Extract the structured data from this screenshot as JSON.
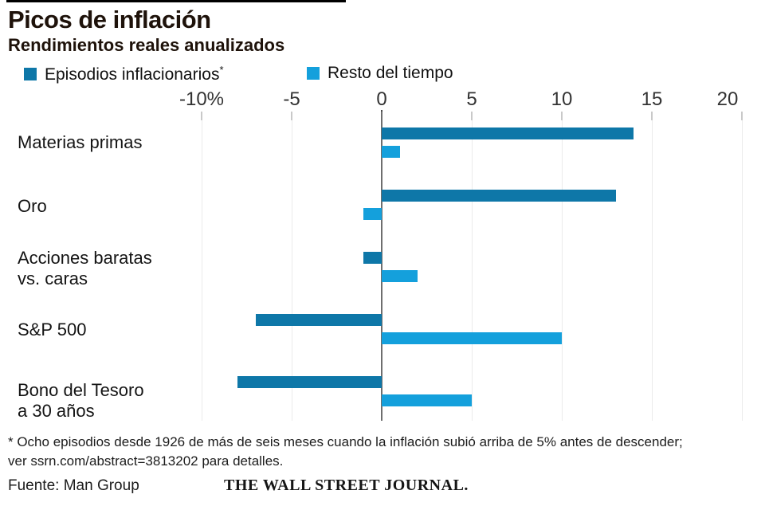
{
  "header": {
    "title": "Picos de inflación",
    "subtitle": "Rendimientos reales anualizados"
  },
  "legend": {
    "items": [
      {
        "label": "Episodios inflacionarios",
        "asterisk": "*",
        "color": "#0e77a8"
      },
      {
        "label": "Resto del tiempo",
        "asterisk": "",
        "color": "#14a0dc"
      }
    ]
  },
  "chart_data": {
    "type": "bar",
    "orientation": "horizontal",
    "title": "Picos de inflación",
    "subtitle": "Rendimientos reales anualizados",
    "categories": [
      "Materias primas",
      "Oro",
      "Acciones baratas vs. caras",
      "S&P 500",
      "Bono del Tesoro a 30 años"
    ],
    "category_lines": [
      [
        "Materias primas"
      ],
      [
        "Oro"
      ],
      [
        "Acciones baratas",
        "vs. caras"
      ],
      [
        "S&P 500"
      ],
      [
        "Bono del Tesoro",
        "a 30 años"
      ]
    ],
    "series": [
      {
        "name": "Episodios inflacionarios*",
        "color": "#0e77a8",
        "values": [
          14,
          13,
          -1,
          -7,
          -8
        ]
      },
      {
        "name": "Resto del tiempo",
        "color": "#14a0dc",
        "values": [
          1,
          -1,
          2,
          10,
          5
        ]
      }
    ],
    "x_ticks": [
      -10,
      -5,
      0,
      5,
      10,
      15,
      20
    ],
    "x_tick_labels": [
      "-10%",
      "-5",
      "0",
      "5",
      "10",
      "15",
      "20"
    ],
    "xlim": [
      -10,
      20
    ],
    "unit": "percent",
    "grid": true,
    "legend_position": "top"
  },
  "footnote": {
    "line1": "* Ocho episodios desde 1926 de más de seis meses cuando la inflación subió arriba de 5% antes de descender;",
    "line2": "ver ssrn.com/abstract=3813202 para detalles."
  },
  "footer": {
    "source": "Fuente: Man Group",
    "brand": "THE WALL STREET JOURNAL."
  },
  "colors": {
    "series_dark": "#0e77a8",
    "series_light": "#14a0dc",
    "zero_line": "#6e6e6e",
    "gridline": "#ebebeb",
    "text": "#1e120a"
  }
}
